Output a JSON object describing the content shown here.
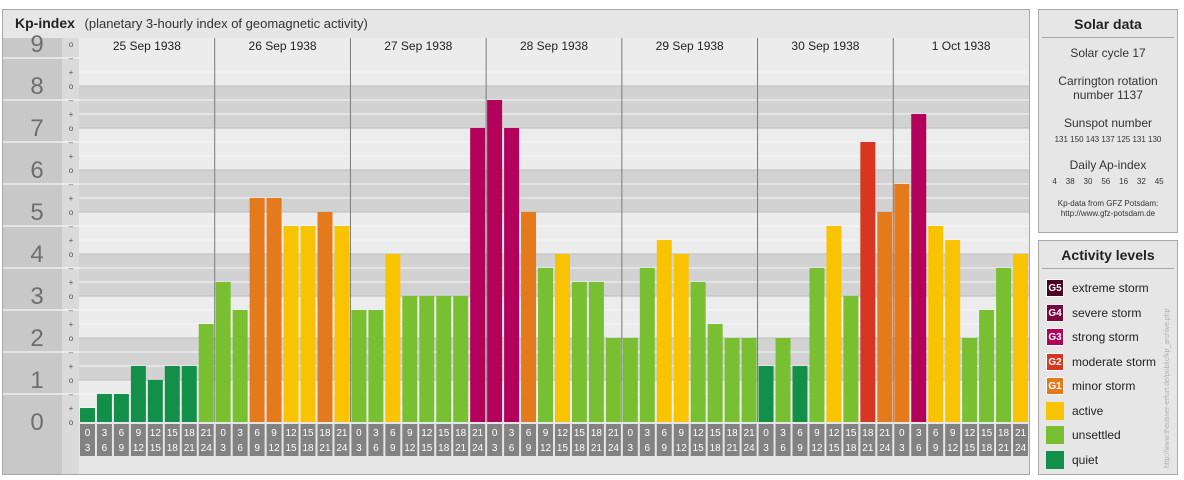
{
  "title": "Kp-index",
  "subtitle": "(planetary 3-hourly index of geomagnetic activity)",
  "chart_data": {
    "type": "bar",
    "y_labels": [
      "0",
      "1",
      "2",
      "3",
      "4",
      "5",
      "6",
      "7",
      "8",
      "9"
    ],
    "minor_labels": [
      "+",
      "–",
      "o"
    ],
    "ylim": [
      0,
      9.33
    ],
    "days": [
      "25 Sep 1938",
      "26 Sep 1938",
      "27 Sep 1938",
      "28 Sep 1938",
      "29 Sep 1938",
      "30 Sep 1938",
      "1 Oct 1938"
    ],
    "hour_start": [
      "0",
      "3",
      "6",
      "9",
      "12",
      "15",
      "18",
      "21"
    ],
    "hour_end": [
      "3",
      "6",
      "9",
      "12",
      "15",
      "18",
      "21",
      "24"
    ],
    "values": [
      [
        0.333,
        0.667,
        0.667,
        1.333,
        1.0,
        1.333,
        1.333,
        2.333
      ],
      [
        3.333,
        2.667,
        5.333,
        5.333,
        4.667,
        4.667,
        5.0,
        4.667
      ],
      [
        2.667,
        2.667,
        4.0,
        3.0,
        3.0,
        3.0,
        3.0,
        7.0
      ],
      [
        7.667,
        7.0,
        5.0,
        3.667,
        4.0,
        3.333,
        3.333,
        2.0
      ],
      [
        2.0,
        3.667,
        4.333,
        4.0,
        3.333,
        2.333,
        2.0,
        2.0
      ],
      [
        1.333,
        2.0,
        1.333,
        3.667,
        4.667,
        3.0,
        6.667,
        5.0
      ],
      [
        5.667,
        7.333,
        4.667,
        4.333,
        2.0,
        2.667,
        3.667,
        4.0
      ]
    ],
    "colors": {
      "quiet": "#12904a",
      "unsettled": "#78c031",
      "active": "#f8c300",
      "G1": "#e47a1c",
      "G2": "#d93621",
      "G3": "#b3005a",
      "G4": "#7d0040",
      "G5": "#4d0026"
    },
    "grid": true
  },
  "solar": {
    "title": "Solar data",
    "cycle": "Solar cycle 17",
    "carrington_1": "Carrington rotation",
    "carrington_2": "number 1137",
    "sunspot_title": "Sunspot number",
    "sunspot_values": "131  150  143  137  125  131  130",
    "ap_title": "Daily Ap-index",
    "ap_values": "4    38    30    56    16    32    45",
    "source_1": "Kp-data from GFZ Potsdam:",
    "source_2": "http://www.gfz-potsdam.de"
  },
  "levels": {
    "title": "Activity levels",
    "items": [
      {
        "code": "G5",
        "label": "extreme storm",
        "color": "#4d0026"
      },
      {
        "code": "G4",
        "label": "severe storm",
        "color": "#7d0040"
      },
      {
        "code": "G3",
        "label": "strong storm",
        "color": "#b3005a"
      },
      {
        "code": "G2",
        "label": "moderate storm",
        "color": "#d93621"
      },
      {
        "code": "G1",
        "label": "minor storm",
        "color": "#e47a1c"
      },
      {
        "code": "",
        "label": "active",
        "color": "#f8c300"
      },
      {
        "code": "",
        "label": "unsettled",
        "color": "#78c031"
      },
      {
        "code": "",
        "label": "quiet",
        "color": "#12904a"
      }
    ]
  },
  "watermark": "http://www.theusner-erfurt.de/public/kp_archive.php"
}
